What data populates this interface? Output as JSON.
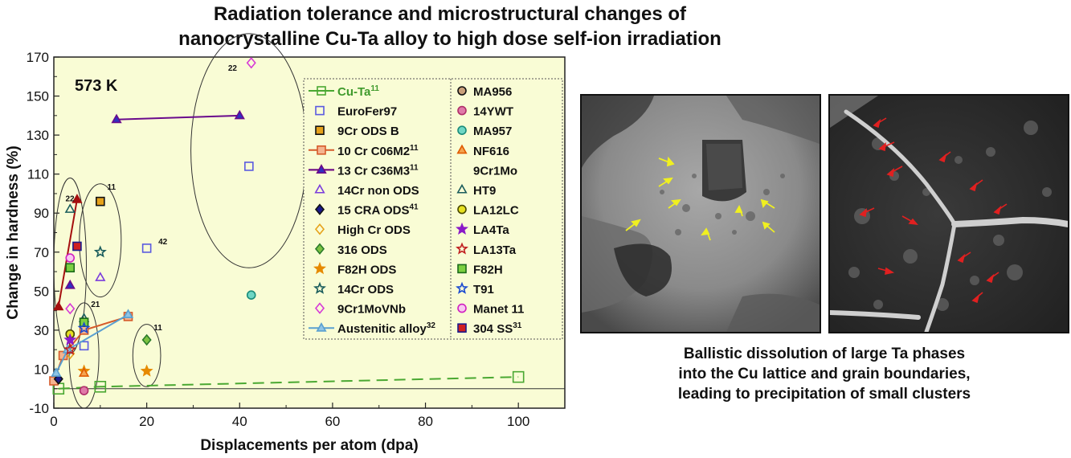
{
  "title": {
    "line1": "Radiation tolerance and microstructural changes of",
    "line2": "nanocrystalline Cu-Ta alloy to high dose self-ion irradiation"
  },
  "caption": {
    "line1": "Ballistic dissolution of large Ta phases",
    "line2": "into the Cu lattice and grain boundaries,",
    "line3": "leading to precipitation of small clusters"
  },
  "chart_data": {
    "type": "scatter",
    "temperature_label": "573 K",
    "xlabel": "Displacements per atom (dpa)",
    "ylabel": "Change in hardness (%)",
    "xlim": [
      0,
      110
    ],
    "ylim": [
      -10,
      170
    ],
    "xticks": [
      0,
      20,
      40,
      60,
      80,
      100
    ],
    "yticks": [
      -10,
      10,
      30,
      50,
      70,
      90,
      110,
      130,
      150,
      170
    ],
    "background": "#f9fcd5",
    "legend_position": "top-right",
    "series": [
      {
        "name": "Cu-Ta",
        "sup": "11",
        "marker": "square",
        "color": "#4aa832",
        "fill": "none",
        "line": "dashed",
        "name_color": "#3f9a2c",
        "points": [
          [
            1,
            0
          ],
          [
            10,
            1
          ],
          [
            100,
            6
          ]
        ]
      },
      {
        "name": "EuroFer97",
        "marker": "square",
        "color": "#5a5ae0",
        "fill": "none",
        "points": [
          [
            20,
            72
          ],
          [
            42,
            114
          ],
          [
            6.5,
            22
          ]
        ]
      },
      {
        "name": "9Cr ODS B",
        "marker": "square",
        "color": "#111111",
        "fill": "#e6a21b",
        "points": [
          [
            10,
            96
          ]
        ]
      },
      {
        "name": "10 Cr C06M2",
        "sup": "11",
        "marker": "square",
        "color": "#d55a2a",
        "fill": "#f4b490",
        "line": "solid",
        "points": [
          [
            0,
            4
          ],
          [
            2,
            17
          ],
          [
            6.5,
            30
          ],
          [
            16,
            37
          ]
        ]
      },
      {
        "name": "13 Cr C36M3",
        "sup": "11",
        "marker": "triangle",
        "color": "#a50f0f",
        "fill": "#a50f0f",
        "line": "solid",
        "points": [
          [
            1,
            42
          ],
          [
            5,
            97
          ]
        ]
      },
      {
        "name": "14Cr non ODS",
        "marker": "triangle",
        "color": "#7a3cdc",
        "fill": "none",
        "points": [
          [
            10,
            57
          ]
        ]
      },
      {
        "name": "15 CRA ODS",
        "sup": "41",
        "marker": "diamond",
        "color": "#111111",
        "fill": "#1a1a8c",
        "points": [
          [
            1,
            5
          ]
        ]
      },
      {
        "name": "High Cr ODS",
        "marker": "diamond",
        "color": "#e6a21b",
        "fill": "none",
        "points": [
          [
            3.5,
            18
          ]
        ]
      },
      {
        "name": "316 ODS",
        "marker": "diamond",
        "color": "#2a7a2a",
        "fill": "#7cc242",
        "points": [
          [
            20,
            25
          ]
        ]
      },
      {
        "name": "F82H ODS",
        "marker": "star",
        "color": "#e68a00",
        "fill": "#e68a00",
        "points": [
          [
            20,
            9
          ],
          [
            6.5,
            9
          ]
        ]
      },
      {
        "name": "14Cr ODS",
        "marker": "star",
        "color": "#1a5c5c",
        "fill": "none",
        "points": [
          [
            10,
            70
          ]
        ]
      },
      {
        "name": "9Cr1MoVNb",
        "marker": "diamond",
        "color": "#d63ad6",
        "fill": "none",
        "points": [
          [
            42.5,
            167
          ],
          [
            3.5,
            41
          ]
        ]
      },
      {
        "name": "Austenitic alloy",
        "sup": "32",
        "marker": "triangle",
        "color": "#5aa0d0",
        "fill": "#8fc4e6",
        "line": "solid",
        "points": [
          [
            0.5,
            8
          ],
          [
            3,
            20
          ],
          [
            16,
            38
          ]
        ]
      },
      {
        "name": "MA956",
        "marker": "circle",
        "color": "#111111",
        "fill": "#c9a07a",
        "points": [
          [
            3.5,
            28
          ]
        ]
      },
      {
        "name": "14YWT",
        "marker": "circle",
        "color": "#b0306a",
        "fill": "#e07aa8",
        "points": [
          [
            6.5,
            -1
          ]
        ]
      },
      {
        "name": "MA957",
        "marker": "circle",
        "color": "#1a8c7a",
        "fill": "#6fd6c4",
        "points": [
          [
            42.5,
            48
          ]
        ]
      },
      {
        "name": "NF616",
        "marker": "triangle",
        "color": "#e05a00",
        "fill": "#f4a450",
        "points": [
          [
            6.5,
            8
          ]
        ]
      },
      {
        "name": "9Cr1Mo",
        "marker": "triangle",
        "color": "#6a0a8c",
        "fill": "#3030c0",
        "line": "solid",
        "points": [
          [
            13.5,
            138
          ],
          [
            40,
            140
          ],
          [
            3.5,
            53
          ]
        ]
      },
      {
        "name": "HT9",
        "marker": "triangle",
        "color": "#1a5c5c",
        "fill": "none",
        "points": [
          [
            3.5,
            92
          ],
          [
            6.5,
            36
          ]
        ]
      },
      {
        "name": "LA12LC",
        "marker": "circle",
        "color": "#4a4a00",
        "fill": "#e6e020",
        "points": [
          [
            3.5,
            28
          ]
        ]
      },
      {
        "name": "LA4Ta",
        "marker": "star",
        "color": "#8a1ac8",
        "fill": "#8a1ac8",
        "points": [
          [
            3.5,
            25
          ]
        ]
      },
      {
        "name": "LA13Ta",
        "marker": "star",
        "color": "#c02020",
        "fill": "none",
        "points": [
          [
            3.5,
            20
          ]
        ]
      },
      {
        "name": "F82H",
        "marker": "square",
        "color": "#1a6a1a",
        "fill": "#7cd040",
        "points": [
          [
            3.5,
            62
          ],
          [
            6.5,
            34
          ]
        ]
      },
      {
        "name": "T91",
        "marker": "star",
        "color": "#1a4ad0",
        "fill": "none",
        "points": [
          [
            6.5,
            31
          ]
        ]
      },
      {
        "name": "Manet 11",
        "marker": "circle",
        "color": "#d020c0",
        "fill": "#f8c8f0",
        "points": [
          [
            3.5,
            67
          ]
        ]
      },
      {
        "name": "304 SS",
        "sup": "31",
        "marker": "square",
        "color": "#1a1a8c",
        "fill": "#d02020",
        "points": [
          [
            5,
            73
          ]
        ]
      }
    ],
    "annotations": [
      {
        "text": "22",
        "x": 37.5,
        "y": 163
      },
      {
        "text": "22",
        "x": 2.5,
        "y": 96
      },
      {
        "text": "11",
        "x": 11.5,
        "y": 102
      },
      {
        "text": "42",
        "x": 22.5,
        "y": 74
      },
      {
        "text": "21",
        "x": 8,
        "y": 42
      },
      {
        "text": "11",
        "x": 21.5,
        "y": 30
      }
    ]
  },
  "images": {
    "left": {
      "description_icon": "tem-micrograph-icon"
    },
    "right": {
      "description_icon": "tem-micrograph-icon"
    }
  }
}
